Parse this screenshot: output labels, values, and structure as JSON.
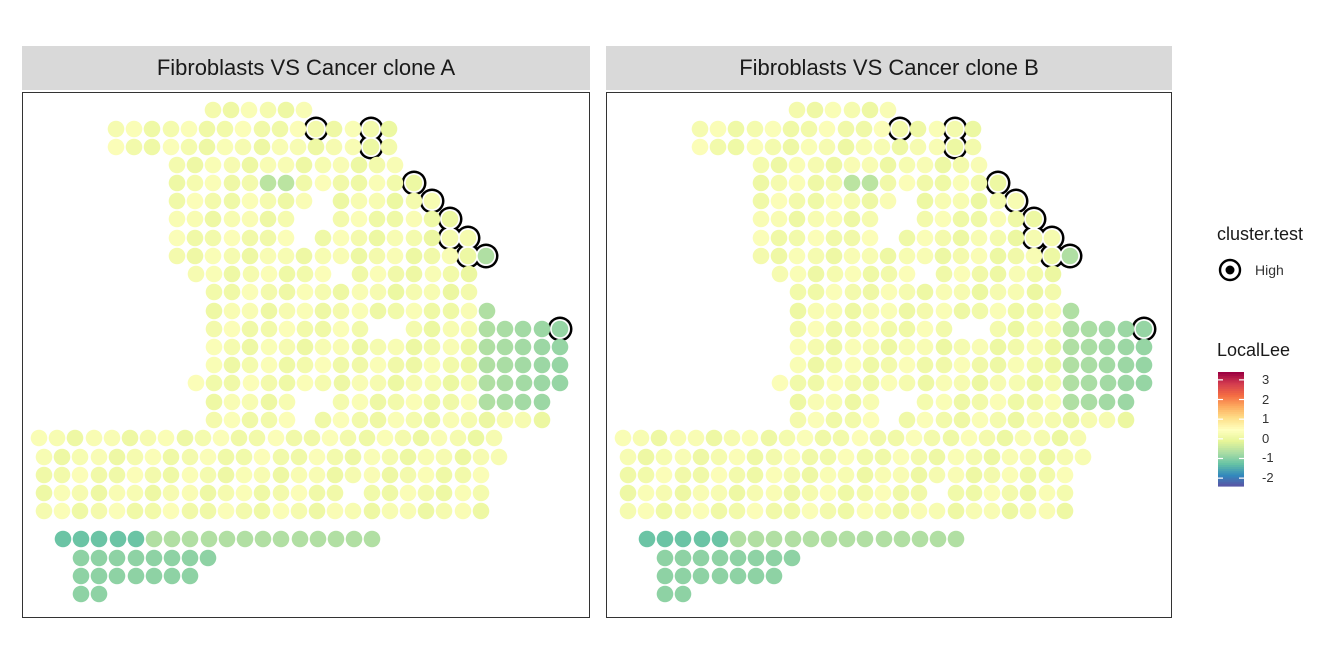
{
  "chart_data": {
    "type": "scatter",
    "panels": [
      {
        "title": "Fibroblasts VS Cancer clone A"
      },
      {
        "title": "Fibroblasts VS Cancer clone B"
      }
    ],
    "legend": {
      "cluster_title": "cluster.test",
      "cluster_level": "High",
      "value_title": "LocalLee",
      "ticks": [
        3,
        2,
        1,
        0,
        -1,
        -2
      ],
      "tick_labels": [
        "3",
        "2",
        "1",
        "0",
        "-1",
        "-2"
      ],
      "range": [
        -2.4,
        3.4
      ],
      "placement": "right"
    },
    "colors": {
      "scale": [
        "#5e4fa2",
        "#3288bd",
        "#66c2a5",
        "#abdda4",
        "#e6f598",
        "#ffffbf",
        "#fee08b",
        "#fdae61",
        "#f46d43",
        "#d53e4f",
        "#9e0142"
      ],
      "outline": "#000000",
      "strip": "#d9d9d9"
    },
    "grid": false,
    "notes": "Spatial spots on a hex-like lattice; values read approximately from colour."
  }
}
